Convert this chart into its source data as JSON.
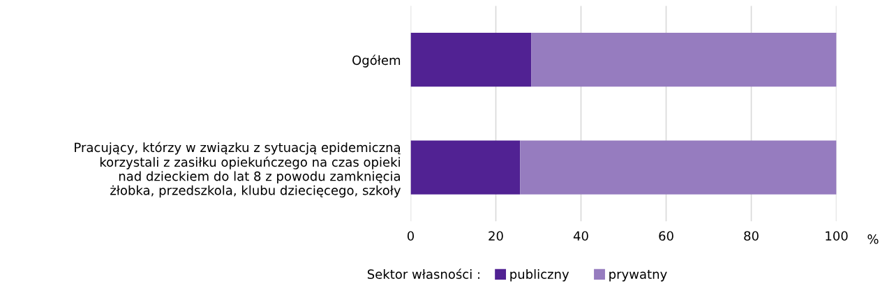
{
  "chart_data": {
    "type": "bar",
    "orientation": "horizontal",
    "stacked": true,
    "categories": [
      "Ogółem",
      "Pracujący, którzy w związku z sytuacją epidemiczną\nkorzystali z zasiłku opiekuńczego na czas opieki\nnad dzieckiem do lat 8 z powodu zamknięcia\nżłobka, przedszkola, klubu dziecięcego, szkoły"
    ],
    "series": [
      {
        "name": "publiczny",
        "color": "#512293",
        "values": [
          28.3,
          25.7
        ]
      },
      {
        "name": "prywatny",
        "color": "#967cbf",
        "values": [
          71.7,
          74.3
        ]
      }
    ],
    "xlim": [
      0,
      100
    ],
    "xticks": [
      0,
      20,
      40,
      60,
      80,
      100
    ],
    "xlabel": "%",
    "grid": "x",
    "legend": "bottom",
    "legend_title": "Sektor własności :"
  }
}
